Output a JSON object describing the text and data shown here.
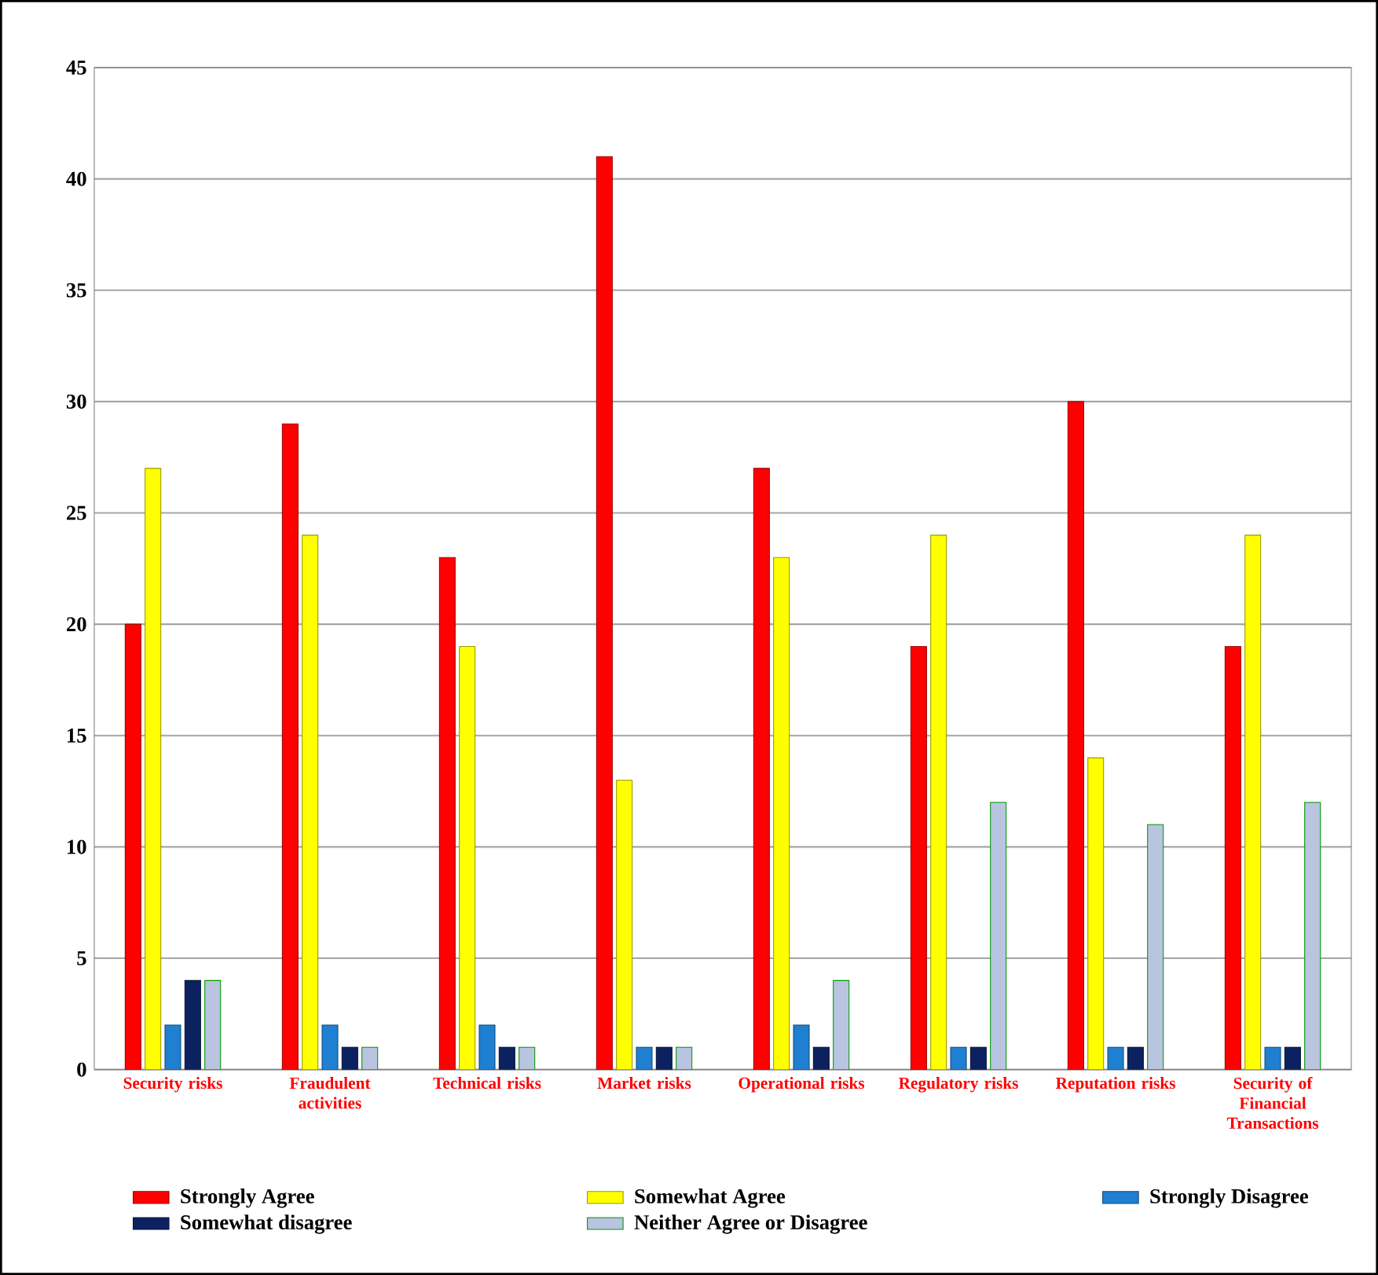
{
  "chart_data": {
    "type": "bar",
    "categories": [
      "Security risks",
      "Fraudulent activities",
      "Technical risks",
      "Market risks",
      "Operational risks",
      "Regulatory risks",
      "Reputation risks",
      "Security of Financial Transactions"
    ],
    "series": [
      {
        "name": "Strongly Agree",
        "color": "#ff0000",
        "values": [
          20,
          29,
          23,
          41,
          27,
          19,
          30,
          19
        ]
      },
      {
        "name": "Somewhat Agree",
        "color": "#ffff00",
        "values": [
          27,
          24,
          19,
          13,
          23,
          24,
          14,
          24
        ]
      },
      {
        "name": "Strongly Disagree",
        "color": "#1f7fd0",
        "values": [
          2,
          2,
          2,
          1,
          2,
          1,
          1,
          1
        ]
      },
      {
        "name": "Somewhat disagree",
        "color": "#0c2260",
        "values": [
          4,
          1,
          1,
          1,
          1,
          1,
          1,
          1
        ]
      },
      {
        "name": "Neither Agree or Disagree",
        "color": "#b8c4e0",
        "values": [
          4,
          1,
          1,
          1,
          4,
          12,
          11,
          12
        ]
      }
    ],
    "ylim": [
      0,
      45
    ],
    "yticks": [
      0,
      5,
      10,
      15,
      20,
      25,
      30,
      35,
      40,
      45
    ],
    "grid": "y",
    "legend": "bottom"
  }
}
